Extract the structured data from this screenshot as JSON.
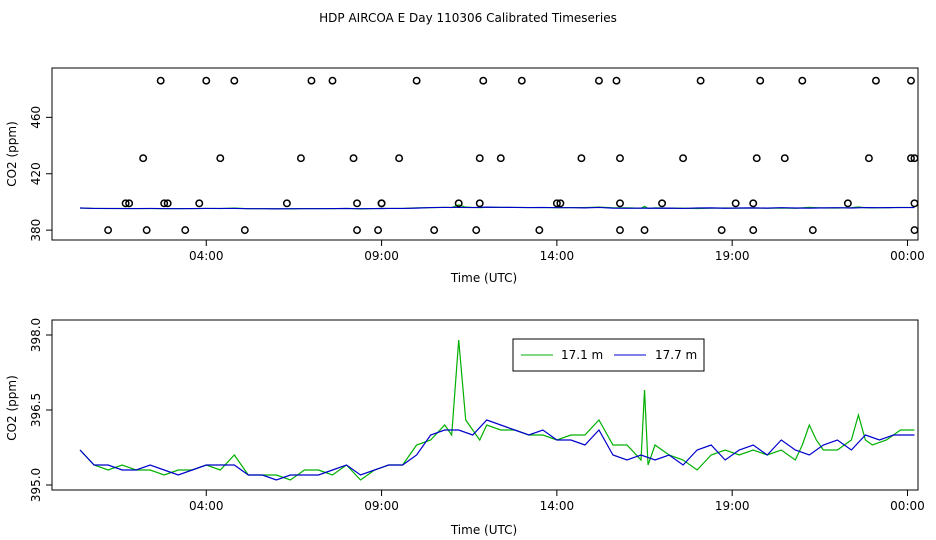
{
  "title": "HDP AIRCOA E  Day 110306  Calibrated Timeseries",
  "colors": {
    "series_17_1": "#00b000",
    "series_17_7": "#0000cc",
    "circles": "#000000"
  },
  "chart_data": [
    {
      "type": "scatter",
      "xlabel": "Time (UTC)",
      "ylabel": "CO2 (ppm)",
      "x_unit": "hours since 00:00",
      "xlim": [
        -0.4,
        24.3
      ],
      "ylim": [
        373,
        495
      ],
      "xticks": [
        {
          "value": 4,
          "label": "04:00"
        },
        {
          "value": 9,
          "label": "09:00"
        },
        {
          "value": 14,
          "label": "14:00"
        },
        {
          "value": 19,
          "label": "19:00"
        },
        {
          "value": 24,
          "label": "00:00"
        }
      ],
      "yticks": [
        {
          "value": 380,
          "label": "380"
        },
        {
          "value": 420,
          "label": "420"
        },
        {
          "value": 460,
          "label": "460"
        }
      ],
      "calibration_points": [
        [
          1.2,
          380
        ],
        [
          2.3,
          380
        ],
        [
          3.4,
          380
        ],
        [
          5.1,
          380
        ],
        [
          8.3,
          380
        ],
        [
          8.9,
          380
        ],
        [
          10.5,
          380
        ],
        [
          11.7,
          380
        ],
        [
          13.5,
          380
        ],
        [
          15.8,
          380
        ],
        [
          16.5,
          380
        ],
        [
          18.7,
          380
        ],
        [
          19.6,
          380
        ],
        [
          21.3,
          380
        ],
        [
          24.2,
          380
        ],
        [
          1.7,
          399
        ],
        [
          2.8,
          399
        ],
        [
          3.8,
          399
        ],
        [
          6.3,
          399
        ],
        [
          8.3,
          399
        ],
        [
          9.0,
          399
        ],
        [
          11.2,
          399
        ],
        [
          11.8,
          399
        ],
        [
          14.1,
          399
        ],
        [
          15.8,
          399
        ],
        [
          17.0,
          399
        ],
        [
          19.1,
          399
        ],
        [
          19.6,
          399
        ],
        [
          22.3,
          399
        ],
        [
          24.2,
          399
        ],
        [
          1.8,
          399
        ],
        [
          2.9,
          399
        ],
        [
          9.0,
          399
        ],
        [
          14.0,
          399
        ],
        [
          2.2,
          431
        ],
        [
          4.4,
          431
        ],
        [
          6.7,
          431
        ],
        [
          8.2,
          431
        ],
        [
          9.5,
          431
        ],
        [
          11.8,
          431
        ],
        [
          12.4,
          431
        ],
        [
          14.7,
          431
        ],
        [
          15.8,
          431
        ],
        [
          17.6,
          431
        ],
        [
          19.7,
          431
        ],
        [
          20.5,
          431
        ],
        [
          22.9,
          431
        ],
        [
          24.1,
          431
        ],
        [
          24.2,
          431
        ],
        [
          2.7,
          486
        ],
        [
          4.0,
          486
        ],
        [
          4.8,
          486
        ],
        [
          7.0,
          486
        ],
        [
          7.6,
          486
        ],
        [
          10.0,
          486
        ],
        [
          11.9,
          486
        ],
        [
          13.0,
          486
        ],
        [
          15.2,
          486
        ],
        [
          15.7,
          486
        ],
        [
          18.1,
          486
        ],
        [
          19.8,
          486
        ],
        [
          21.0,
          486
        ],
        [
          23.1,
          486
        ],
        [
          24.1,
          486
        ]
      ],
      "series": [
        {
          "name": "17.1 m",
          "values_ref": "series_a"
        },
        {
          "name": "17.7 m",
          "values_ref": "series_b"
        }
      ]
    },
    {
      "type": "line",
      "xlabel": "Time (UTC)",
      "ylabel": "CO2 (ppm)",
      "x_unit": "hours since 00:00",
      "xlim": [
        -0.4,
        24.3
      ],
      "ylim": [
        394.9,
        398.3
      ],
      "xticks": [
        {
          "value": 4,
          "label": "04:00"
        },
        {
          "value": 9,
          "label": "09:00"
        },
        {
          "value": 14,
          "label": "14:00"
        },
        {
          "value": 19,
          "label": "19:00"
        },
        {
          "value": 24,
          "label": "00:00"
        }
      ],
      "yticks": [
        {
          "value": 395.0,
          "label": "395.0"
        },
        {
          "value": 396.5,
          "label": "396.5"
        },
        {
          "value": 398.0,
          "label": "398.0"
        }
      ],
      "legend": {
        "placement": "top-center",
        "entries": [
          "17.1 m",
          "17.7 m"
        ]
      },
      "series": [
        {
          "name": "17.1 m",
          "color": "#00b000",
          "x": [
            0.4,
            0.8,
            1.2,
            1.6,
            2.0,
            2.4,
            2.8,
            3.2,
            3.6,
            4.0,
            4.4,
            4.8,
            5.2,
            5.6,
            6.0,
            6.4,
            6.8,
            7.2,
            7.6,
            8.0,
            8.4,
            8.8,
            9.2,
            9.6,
            10.0,
            10.4,
            10.8,
            11.0,
            11.2,
            11.4,
            11.6,
            11.8,
            12.0,
            12.4,
            12.8,
            13.2,
            13.6,
            14.0,
            14.4,
            14.8,
            15.2,
            15.6,
            16.0,
            16.4,
            16.5,
            16.6,
            16.8,
            17.2,
            17.6,
            18.0,
            18.4,
            18.8,
            19.2,
            19.6,
            20.0,
            20.4,
            20.8,
            21.0,
            21.2,
            21.4,
            21.6,
            22.0,
            22.4,
            22.6,
            22.8,
            23.0,
            23.4,
            23.8,
            24.2
          ],
          "values": [
            395.7,
            395.4,
            395.3,
            395.4,
            395.3,
            395.3,
            395.2,
            395.3,
            395.3,
            395.4,
            395.3,
            395.6,
            395.2,
            395.2,
            395.2,
            395.1,
            395.3,
            395.3,
            395.2,
            395.4,
            395.1,
            395.3,
            395.4,
            395.4,
            395.8,
            395.9,
            396.2,
            396.0,
            397.9,
            396.3,
            396.1,
            395.9,
            396.2,
            396.1,
            396.1,
            396.0,
            396.0,
            395.9,
            396.0,
            396.0,
            396.3,
            395.8,
            395.8,
            395.5,
            396.9,
            395.4,
            395.8,
            395.6,
            395.5,
            395.3,
            395.6,
            395.7,
            395.6,
            395.7,
            395.6,
            395.7,
            395.5,
            395.8,
            396.2,
            395.9,
            395.7,
            395.7,
            395.9,
            396.4,
            395.9,
            395.8,
            395.9,
            396.1,
            396.1
          ]
        },
        {
          "name": "17.7 m",
          "color": "#0000cc",
          "x": [
            0.4,
            0.8,
            1.2,
            1.6,
            2.0,
            2.4,
            2.8,
            3.2,
            3.6,
            4.0,
            4.4,
            4.8,
            5.2,
            5.6,
            6.0,
            6.4,
            6.8,
            7.2,
            7.6,
            8.0,
            8.4,
            8.8,
            9.2,
            9.6,
            10.0,
            10.4,
            10.8,
            11.2,
            11.6,
            12.0,
            12.4,
            12.8,
            13.2,
            13.6,
            14.0,
            14.4,
            14.8,
            15.2,
            15.6,
            16.0,
            16.4,
            16.8,
            17.2,
            17.6,
            18.0,
            18.4,
            18.8,
            19.2,
            19.6,
            20.0,
            20.4,
            20.8,
            21.2,
            21.6,
            22.0,
            22.4,
            22.8,
            23.2,
            23.6,
            24.0,
            24.2
          ],
          "values": [
            395.7,
            395.4,
            395.4,
            395.3,
            395.3,
            395.4,
            395.3,
            395.2,
            395.3,
            395.4,
            395.4,
            395.4,
            395.2,
            395.2,
            395.1,
            395.2,
            395.2,
            395.2,
            395.3,
            395.4,
            395.2,
            395.3,
            395.4,
            395.4,
            395.6,
            396.0,
            396.1,
            396.1,
            396.0,
            396.3,
            396.2,
            396.1,
            396.0,
            396.1,
            395.9,
            395.9,
            395.8,
            396.1,
            395.6,
            395.5,
            395.6,
            395.5,
            395.6,
            395.4,
            395.7,
            395.8,
            395.5,
            395.7,
            395.8,
            395.6,
            395.9,
            395.7,
            395.6,
            395.8,
            395.9,
            395.7,
            396.0,
            395.9,
            396.0,
            396.0,
            396.0
          ]
        }
      ]
    }
  ]
}
